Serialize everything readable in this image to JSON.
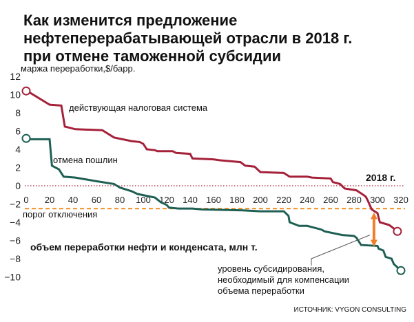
{
  "chart_data": {
    "type": "line",
    "title": [
      "Как изменится предложение",
      "нефтеперерабатывающей отрасли в 2018 г.",
      "при отмене таможенной субсидии"
    ],
    "ylabel": "маржа переработки,$/барр.",
    "xlabel": "объем переработки нефти и конденсата, млн т.",
    "ylim": [
      -10,
      12
    ],
    "yticks": [
      12,
      10,
      8,
      6,
      4,
      2,
      0,
      -2,
      -4,
      -6,
      -8,
      -10
    ],
    "xlim": [
      0,
      320
    ],
    "xticks": [
      0,
      20,
      40,
      60,
      80,
      100,
      120,
      140,
      160,
      180,
      200,
      220,
      240,
      260,
      280,
      300,
      320
    ],
    "grid": false,
    "series": [
      {
        "name": "действующая налоговая система",
        "color": "#a5213a",
        "points": [
          [
            0,
            10.4
          ],
          [
            2,
            10.3
          ],
          [
            20,
            8.9
          ],
          [
            30,
            8.8
          ],
          [
            33,
            6.5
          ],
          [
            42,
            6.2
          ],
          [
            65,
            6.1
          ],
          [
            75,
            5.3
          ],
          [
            90,
            4.9
          ],
          [
            97,
            4.8
          ],
          [
            100,
            4.6
          ],
          [
            103,
            4.0
          ],
          [
            110,
            3.9
          ],
          [
            112,
            3.8
          ],
          [
            125,
            3.8
          ],
          [
            128,
            3.6
          ],
          [
            140,
            3.5
          ],
          [
            142,
            3.0
          ],
          [
            160,
            2.9
          ],
          [
            165,
            2.8
          ],
          [
            183,
            2.6
          ],
          [
            187,
            2.2
          ],
          [
            195,
            2.1
          ],
          [
            200,
            1.5
          ],
          [
            220,
            1.4
          ],
          [
            225,
            1.0
          ],
          [
            240,
            1.0
          ],
          [
            244,
            0.9
          ],
          [
            260,
            0.8
          ],
          [
            262,
            0.4
          ],
          [
            268,
            0.2
          ],
          [
            272,
            -0.3
          ],
          [
            282,
            -0.5
          ],
          [
            288,
            -1.0
          ],
          [
            290,
            -1.2
          ],
          [
            292,
            -1.7
          ],
          [
            295,
            -2.6
          ],
          [
            300,
            -3.0
          ],
          [
            302,
            -4.0
          ],
          [
            310,
            -4.3
          ],
          [
            312,
            -4.5
          ],
          [
            317,
            -5.0
          ]
        ]
      },
      {
        "name": "отмена пошлин",
        "color": "#1e5f54",
        "points": [
          [
            0,
            5.2
          ],
          [
            2,
            5.1
          ],
          [
            20,
            5.1
          ],
          [
            22,
            2.2
          ],
          [
            28,
            1.8
          ],
          [
            32,
            1.0
          ],
          [
            42,
            0.9
          ],
          [
            60,
            0.5
          ],
          [
            75,
            0.2
          ],
          [
            80,
            -0.2
          ],
          [
            90,
            -0.6
          ],
          [
            95,
            -0.9
          ],
          [
            110,
            -1.3
          ],
          [
            115,
            -1.8
          ],
          [
            120,
            -2.1
          ],
          [
            122,
            -2.4
          ],
          [
            130,
            -2.5
          ],
          [
            142,
            -2.5
          ],
          [
            150,
            -2.6
          ],
          [
            185,
            -2.7
          ],
          [
            200,
            -2.8
          ],
          [
            220,
            -2.8
          ],
          [
            224,
            -3.3
          ],
          [
            225,
            -4.0
          ],
          [
            233,
            -4.4
          ],
          [
            240,
            -4.4
          ],
          [
            252,
            -4.8
          ],
          [
            255,
            -5.0
          ],
          [
            270,
            -5.4
          ],
          [
            280,
            -5.5
          ],
          [
            282,
            -5.7
          ],
          [
            286,
            -6.5
          ],
          [
            300,
            -6.6
          ],
          [
            301,
            -6.9
          ],
          [
            305,
            -7.1
          ],
          [
            307,
            -7.8
          ],
          [
            312,
            -8.0
          ],
          [
            314,
            -8.6
          ],
          [
            320,
            -9.3
          ]
        ]
      }
    ],
    "reference_lines": [
      {
        "type": "horizontal",
        "y": 0,
        "style": "dotted",
        "color": "#a5213a"
      },
      {
        "type": "horizontal",
        "y": -2.5,
        "style": "dashed",
        "color": "#f29a3a",
        "label": "порог отключения"
      }
    ],
    "annotations": {
      "year": "2018 г.",
      "subsidy_arrow": {
        "x": 297,
        "y_top": -3.3,
        "y_bottom": -6.3,
        "color": "#f07f2a"
      },
      "subsidy_text": [
        "уровень субсидирования,",
        "необходимый для компенсации",
        "объема переработки"
      ],
      "source": "ИСТОЧНИК: VYGON CONSULTING"
    },
    "style": {
      "accent_orange": "#f07f2a",
      "threshold_orange": "#f29a3a"
    }
  }
}
